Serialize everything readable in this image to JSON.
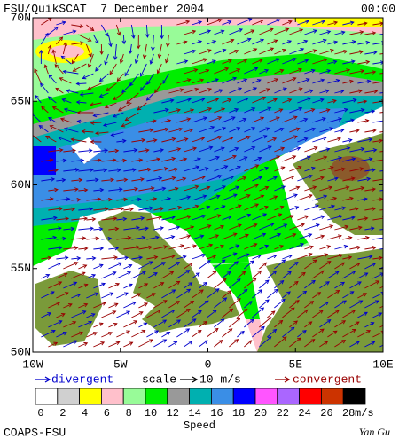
{
  "header": {
    "title": "FSU/QuikSCAT  7 December 2004",
    "time": "00:00"
  },
  "map": {
    "lat_labels": [
      "70N",
      "65N",
      "60N",
      "55N",
      "50N"
    ],
    "lon_labels": [
      "10W",
      "5W",
      "0",
      "5E",
      "10E"
    ]
  },
  "legend": {
    "divergent": "divergent",
    "scale": "scale",
    "scale_value": "10 m/s",
    "convergent": "convergent"
  },
  "colorbar": {
    "labels": [
      0,
      2,
      4,
      6,
      8,
      10,
      12,
      14,
      16,
      18,
      20,
      22,
      24,
      26,
      28
    ],
    "unit": "m/s",
    "title": "Speed",
    "colors": [
      "#ffffff",
      "#d0d0d0",
      "#ffff00",
      "#ffc0cb",
      "#98fb98",
      "#00ee00",
      "#999999",
      "#00b0b0",
      "#3a8ee6",
      "#0000ff",
      "#ff55ff",
      "#aa66ff",
      "#ff0000",
      "#cc3300",
      "#000000"
    ]
  },
  "footer": {
    "credit": "COAPS-FSU",
    "author": "Yan Gu"
  }
}
